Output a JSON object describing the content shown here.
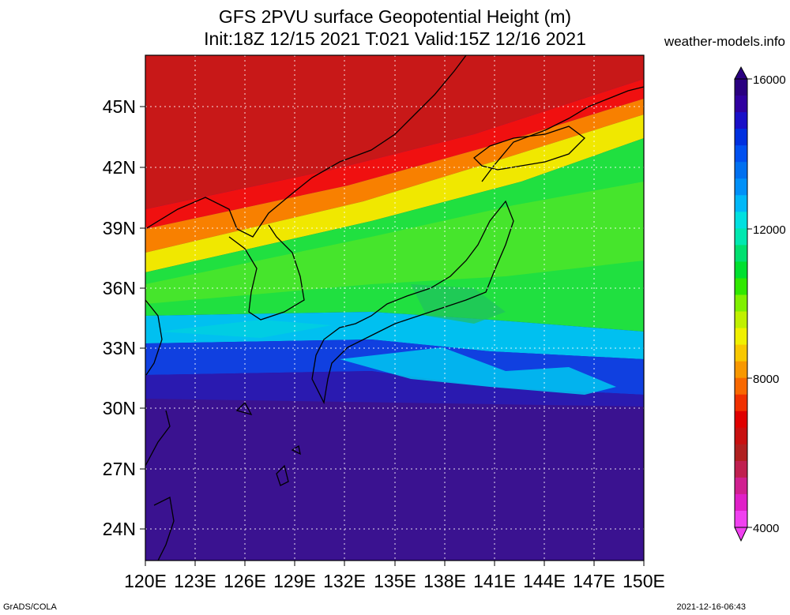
{
  "header": {
    "title_line1": "GFS 2PVU surface Geopotential Height (m)",
    "title_line2": "Init:18Z 12/15 2021 T:021 Valid:15Z 12/16 2021",
    "site": "weather-models.info"
  },
  "footer": {
    "left": "GrADS/COLA",
    "right": "2021-12-16-06:43"
  },
  "map": {
    "lat_labels": [
      "45N",
      "42N",
      "39N",
      "36N",
      "33N",
      "30N",
      "27N",
      "24N"
    ],
    "lon_labels": [
      "120E",
      "123E",
      "126E",
      "129E",
      "132E",
      "135E",
      "138E",
      "141E",
      "144E",
      "147E",
      "150E"
    ]
  },
  "colorbar": {
    "labels": [
      "16000",
      "12000",
      "8000",
      "4000"
    ],
    "colors": [
      "#2a0080",
      "#3000a0",
      "#1a10c8",
      "#0030e0",
      "#0050f0",
      "#0070f0",
      "#0090f8",
      "#00b8f8",
      "#00e0e0",
      "#00e8b0",
      "#00e070",
      "#00e030",
      "#30e800",
      "#80f000",
      "#c0f000",
      "#f0f000",
      "#f8c800",
      "#f89800",
      "#f86800",
      "#f03000",
      "#e00000",
      "#c81010",
      "#b02020",
      "#c02050",
      "#d02090",
      "#e020c8",
      "#f040f0"
    ]
  }
}
